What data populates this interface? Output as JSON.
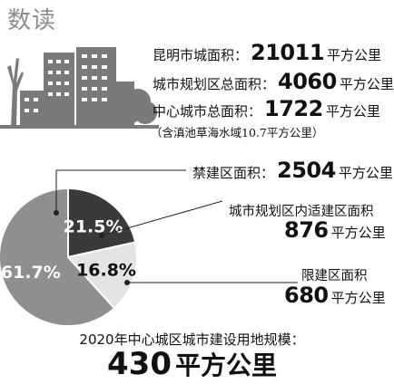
{
  "heading": "数读",
  "stats": [
    {
      "label": "昆明市城面积：",
      "value": "21011",
      "unit": "平方公里"
    },
    {
      "label": "城市规划区总面积：",
      "value": "4060",
      "unit": "平方公里"
    },
    {
      "label": "中心城市总面积：",
      "value": "1722",
      "unit": "平方公里"
    }
  ],
  "note": "（含滇池草海水域10.7平方公里）",
  "areas": {
    "forbidden": {
      "label": "禁建区面积：",
      "value": "2504",
      "unit": "平方公里"
    },
    "suitable": {
      "label": "城市规划区内适建区面积",
      "value": "876",
      "unit": "平方公里"
    },
    "restricted": {
      "label": "限建区面积",
      "value": "680",
      "unit": "平方公里"
    }
  },
  "footer": {
    "label": "2020年中心城区城市建设用地规模：",
    "value": "430",
    "unit": "平方公里"
  },
  "chart_data": {
    "type": "pie",
    "title": "",
    "slices": [
      {
        "label": "21.5%",
        "value": 21.5,
        "color": "#3a3a3a"
      },
      {
        "label": "16.8%",
        "value": 16.8,
        "color": "#e4e4e4"
      },
      {
        "label": "61.7%",
        "value": 61.7,
        "color": "#8f8f8f"
      }
    ]
  },
  "colors": {
    "heading": "#8c8c8c",
    "skyline": "#7a7a7a"
  }
}
